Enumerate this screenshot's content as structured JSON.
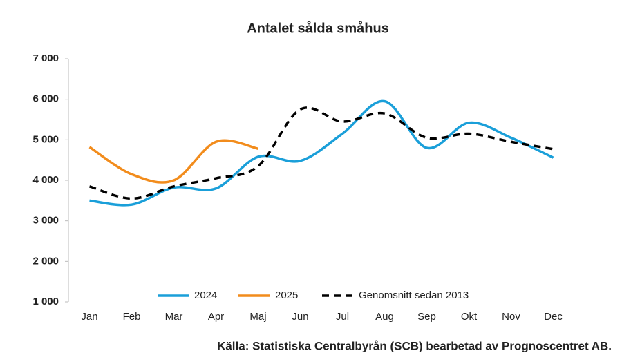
{
  "chart_data": {
    "type": "line",
    "title": "Antalet sålda småhus",
    "source": "Källa: Statistiska Centralbyrån (SCB) bearbetad av Prognoscentret AB.",
    "categories": [
      "Jan",
      "Feb",
      "Mar",
      "Apr",
      "Maj",
      "Jun",
      "Jul",
      "Aug",
      "Sep",
      "Okt",
      "Nov",
      "Dec"
    ],
    "series": [
      {
        "name": "2024",
        "color": "#1a9fd9",
        "dashed": false,
        "values": [
          3500,
          3400,
          3820,
          3800,
          4580,
          4480,
          5150,
          5950,
          4800,
          5420,
          5050,
          4560
        ]
      },
      {
        "name": "2025",
        "color": "#f28c1c",
        "dashed": false,
        "values": [
          4820,
          4150,
          4000,
          4950,
          4780,
          null,
          null,
          null,
          null,
          null,
          null,
          null
        ]
      },
      {
        "name": "Genomsnitt sedan 2013",
        "color": "#000000",
        "dashed": true,
        "values": [
          3850,
          3550,
          3850,
          4050,
          4350,
          5750,
          5450,
          5650,
          5050,
          5150,
          4950,
          4770
        ]
      }
    ],
    "ylim": [
      1000,
      7000
    ],
    "yticks": [
      {
        "value": 1000,
        "label": "1 000"
      },
      {
        "value": 2000,
        "label": "2 000"
      },
      {
        "value": 3000,
        "label": "3 000"
      },
      {
        "value": 4000,
        "label": "4 000"
      },
      {
        "value": 5000,
        "label": "5 000"
      },
      {
        "value": 6000,
        "label": "6 000"
      },
      {
        "value": 7000,
        "label": "7 000"
      }
    ],
    "grid": false,
    "legend": "bottom"
  }
}
